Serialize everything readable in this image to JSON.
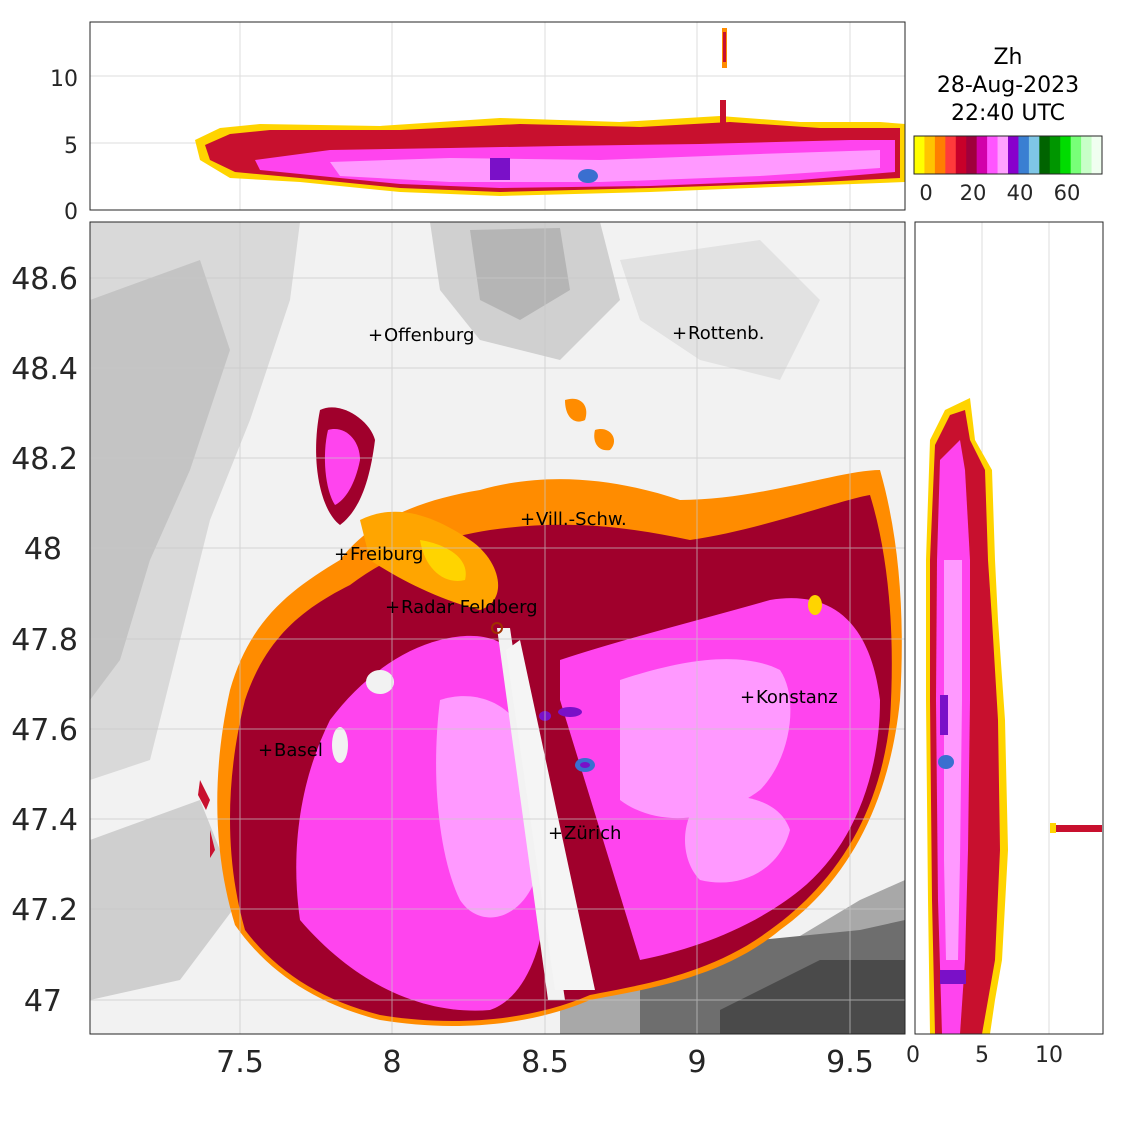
{
  "colorbar": {
    "title_lines": [
      "Zh",
      "28-Aug-2023",
      "22:40 UTC"
    ],
    "tick_labels": [
      "0",
      "20",
      "40",
      "60"
    ],
    "colors": [
      "#ffff00",
      "#ffc400",
      "#ff7f00",
      "#ff3b3b",
      "#c8002a",
      "#a0003c",
      "#d200aa",
      "#ff55ff",
      "#ffa0ff",
      "#8800cc",
      "#3a7fd2",
      "#7fc6e6",
      "#006400",
      "#009600",
      "#00dc00",
      "#78ff78",
      "#c8ffc8",
      "#f0fff0"
    ]
  },
  "map": {
    "x_ticks": [
      "7.5",
      "8",
      "8.5",
      "9",
      "9.5"
    ],
    "y_ticks": [
      "48.6",
      "48.4",
      "48.2",
      "48",
      "47.8",
      "47.6",
      "47.4",
      "47.2",
      "47"
    ],
    "cities": [
      {
        "name": "Offenburg"
      },
      {
        "name": "Rottenb."
      },
      {
        "name": "Vill.-Schw."
      },
      {
        "name": "Freiburg"
      },
      {
        "name": "Radar Feldberg"
      },
      {
        "name": "Konstanz"
      },
      {
        "name": "Basel"
      },
      {
        "name": "Zürich"
      }
    ]
  },
  "top_panel": {
    "y_ticks": [
      "10",
      "5",
      "0"
    ]
  },
  "right_panel": {
    "x_ticks": [
      "0",
      "5",
      "10"
    ]
  },
  "palette": {
    "terrain_light": "#eeeeee",
    "terrain_mid": "#cfcfcf",
    "terrain_dark": "#8a8a8a",
    "echo_dark_red": "#a0002c",
    "echo_red": "#c8102e",
    "echo_magenta": "#ff44ee",
    "echo_pink": "#ff99ff",
    "echo_purple": "#7a10c8",
    "echo_orange": "#ff8c00",
    "echo_yellow": "#ffd400",
    "echo_blue": "#3a6fd0"
  }
}
